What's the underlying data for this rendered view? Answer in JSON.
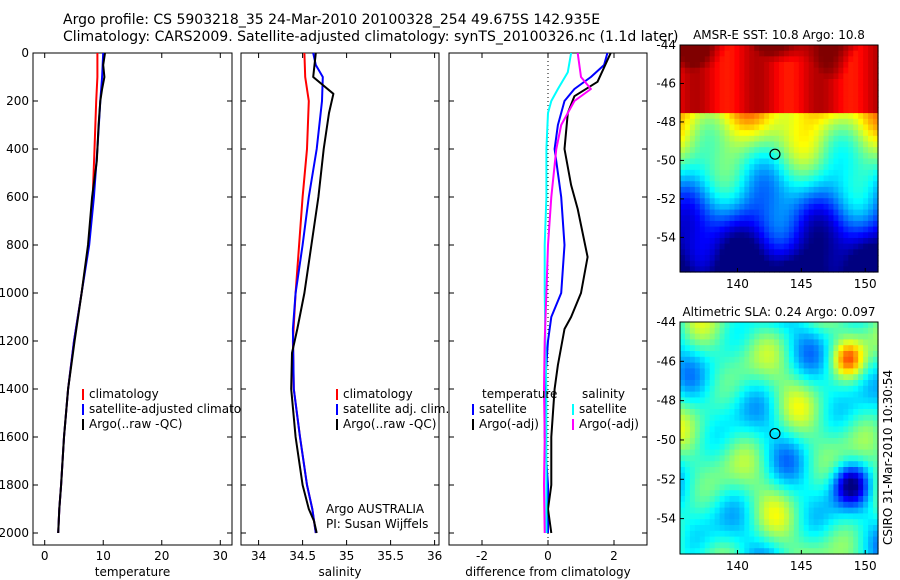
{
  "header": {
    "line1": "Argo profile: CS 5903218_35 24-Mar-2010 20100328_254 49.675S 142.935E",
    "line2": "Climatology: CARS2009. Satellite-adjusted climatology: synTS_20100326.nc (1.1d later)"
  },
  "side_label": "CSIRO 31-Mar-2010 10:30:54",
  "chart_data": [
    {
      "type": "line",
      "panel": "temperature",
      "xlabel": "temperature",
      "ylabel": "",
      "xlim": [
        -2,
        32
      ],
      "ylim": [
        2050,
        0
      ],
      "y_reversed": true,
      "xticks": [
        0,
        10,
        20,
        30
      ],
      "yticks": [
        0,
        200,
        400,
        600,
        800,
        1000,
        1200,
        1400,
        1600,
        1800,
        2000
      ],
      "legend": {
        "placement": "lower-right",
        "entries": [
          "climatology",
          "satellite-adjusted climatology",
          "Argo(..raw -QC)"
        ]
      },
      "series": [
        {
          "name": "climatology",
          "color": "#ff0000",
          "x": [
            9.0,
            9.0,
            8.8,
            8.5,
            8.2,
            7.5,
            6.3,
            5.0,
            4.0,
            3.3,
            2.8,
            2.5,
            2.3
          ],
          "y": [
            0,
            100,
            200,
            400,
            600,
            800,
            1000,
            1200,
            1400,
            1600,
            1800,
            1900,
            2000
          ]
        },
        {
          "name": "satellite-adjusted climatology",
          "color": "#0000ff",
          "x": [
            10.0,
            9.8,
            9.5,
            9.0,
            8.4,
            7.6,
            6.3,
            5.0,
            4.0,
            3.3,
            2.8,
            2.5,
            2.3
          ],
          "y": [
            0,
            100,
            200,
            400,
            600,
            800,
            1000,
            1200,
            1400,
            1600,
            1800,
            1900,
            2000
          ]
        },
        {
          "name": "Argo(..raw -QC)",
          "color": "#000000",
          "x": [
            10.3,
            10.0,
            10.2,
            9.8,
            9.5,
            9.2,
            8.9,
            8.1,
            7.4,
            6.3,
            5.1,
            4.0,
            3.3,
            2.8,
            2.5,
            2.3
          ],
          "y": [
            0,
            50,
            100,
            150,
            200,
            300,
            450,
            600,
            800,
            1000,
            1200,
            1400,
            1600,
            1800,
            1900,
            2000
          ]
        }
      ]
    },
    {
      "type": "line",
      "panel": "salinity",
      "xlabel": "salinity",
      "ylabel": "",
      "xlim": [
        33.8,
        36.05
      ],
      "ylim": [
        2050,
        0
      ],
      "y_reversed": true,
      "xticks": [
        34,
        34.5,
        35,
        35.5,
        36
      ],
      "annotations": [
        "Argo AUSTRALIA",
        "PI: Susan Wijffels"
      ],
      "legend": {
        "placement": "lower-right",
        "entries": [
          "climatology",
          "satellite adj. clim.",
          "Argo(..raw -QC)"
        ]
      },
      "series": [
        {
          "name": "climatology",
          "color": "#ff0000",
          "x": [
            34.52,
            34.53,
            34.57,
            34.55,
            34.5,
            34.46,
            34.42,
            34.39,
            34.4,
            34.47,
            34.55,
            34.61,
            34.65
          ],
          "y": [
            0,
            100,
            200,
            400,
            600,
            800,
            1000,
            1200,
            1400,
            1600,
            1800,
            1900,
            2000
          ]
        },
        {
          "name": "satellite adj. clim.",
          "color": "#0000ff",
          "x": [
            34.62,
            34.65,
            34.73,
            34.72,
            34.66,
            34.57,
            34.5,
            34.42,
            34.39,
            34.4,
            34.47,
            34.55,
            34.61,
            34.65
          ],
          "y": [
            0,
            50,
            100,
            200,
            400,
            600,
            800,
            1000,
            1150,
            1400,
            1600,
            1800,
            1900,
            2000
          ]
        },
        {
          "name": "Argo(..raw -QC)",
          "color": "#000000",
          "x": [
            34.65,
            34.62,
            34.85,
            34.8,
            34.74,
            34.68,
            34.6,
            34.52,
            34.44,
            34.38,
            34.37,
            34.42,
            34.5,
            34.57,
            34.63,
            34.66
          ],
          "y": [
            0,
            100,
            170,
            250,
            400,
            600,
            800,
            1000,
            1150,
            1250,
            1400,
            1600,
            1800,
            1900,
            1950,
            2000
          ]
        }
      ]
    },
    {
      "type": "line",
      "panel": "difference",
      "xlabel": "difference from climatology",
      "ylabel": "",
      "xlim": [
        -3,
        3
      ],
      "ylim": [
        2050,
        0
      ],
      "y_reversed": true,
      "xticks": [
        -2,
        0,
        2
      ],
      "legend": {
        "placement": "lower-right",
        "columns": [
          {
            "heading": "temperature",
            "entries": [
              "satellite",
              "Argo(-adj)"
            ]
          },
          {
            "heading": "salinity",
            "entries": [
              "satellite",
              "Argo(-adj)"
            ]
          }
        ]
      },
      "series": [
        {
          "name": "temperature satellite",
          "color": "#0000ff",
          "x": [
            1.8,
            1.7,
            1.3,
            0.8,
            0.5,
            0.3,
            0.2,
            0.3,
            0.4,
            0.5,
            0.4,
            0.1,
            0.0,
            -0.1,
            -0.1,
            0.0,
            0.0
          ],
          "y": [
            0,
            50,
            100,
            150,
            200,
            300,
            400,
            500,
            600,
            800,
            1000,
            1100,
            1200,
            1400,
            1600,
            1800,
            2000
          ]
        },
        {
          "name": "temperature Argo(-adj)",
          "color": "#000000",
          "x": [
            1.9,
            1.7,
            1.5,
            0.8,
            0.6,
            0.5,
            0.7,
            0.9,
            1.2,
            1.0,
            0.7,
            0.5,
            0.3,
            0.2,
            0.1,
            0.1,
            0.0,
            0.1
          ],
          "y": [
            0,
            60,
            120,
            180,
            250,
            400,
            550,
            650,
            850,
            1000,
            1100,
            1150,
            1300,
            1400,
            1600,
            1800,
            1900,
            2000
          ]
        },
        {
          "name": "salinity satellite",
          "color": "#00ffff",
          "x": [
            0.7,
            0.6,
            0.3,
            0.1,
            0.0,
            -0.05,
            -0.05,
            -0.1,
            -0.1,
            -0.08,
            -0.05,
            -0.05,
            -0.05
          ],
          "y": [
            0,
            80,
            150,
            200,
            250,
            400,
            600,
            800,
            1000,
            1200,
            1400,
            1600,
            2000
          ]
        },
        {
          "name": "salinity Argo(-adj)",
          "color": "#ff00ff",
          "x": [
            0.9,
            1.0,
            1.3,
            0.8,
            0.4,
            0.25,
            0.1,
            0.0,
            -0.05,
            -0.1,
            -0.12,
            -0.1,
            -0.12,
            -0.1
          ],
          "y": [
            0,
            100,
            150,
            200,
            300,
            400,
            600,
            800,
            1000,
            1200,
            1400,
            1600,
            1800,
            2000
          ]
        }
      ]
    },
    {
      "type": "heatmap",
      "panel": "sst-map",
      "title": "AMSR-E SST: 10.8 Argo: 10.8",
      "xlim": [
        135.5,
        151
      ],
      "ylim": [
        -55.8,
        -44
      ],
      "xticks": [
        140,
        145,
        150
      ],
      "yticks": [
        -44,
        -46,
        -48,
        -50,
        -52,
        -54
      ],
      "tick_labels": {
        "x": [
          "140",
          "145",
          "150"
        ],
        "y": [
          "-44",
          "-46",
          "-48",
          "-50",
          "-52",
          "-54"
        ]
      },
      "marker": {
        "lon": 142.935,
        "lat": -49.675
      },
      "colormap": "jet"
    },
    {
      "type": "heatmap",
      "panel": "sla-map",
      "title": "Altimetric SLA: 0.24 Argo: 0.097",
      "xlim": [
        135.5,
        151
      ],
      "ylim": [
        -55.8,
        -44
      ],
      "xticks": [
        140,
        145,
        150
      ],
      "yticks": [
        -44,
        -46,
        -48,
        -50,
        -52,
        -54
      ],
      "tick_labels": {
        "x": [
          "140",
          "145",
          "150"
        ],
        "y": [
          "-44",
          "-46",
          "-48",
          "-50",
          "-52",
          "-54"
        ]
      },
      "marker": {
        "lon": 142.935,
        "lat": -49.675
      },
      "colormap": "jet"
    }
  ]
}
